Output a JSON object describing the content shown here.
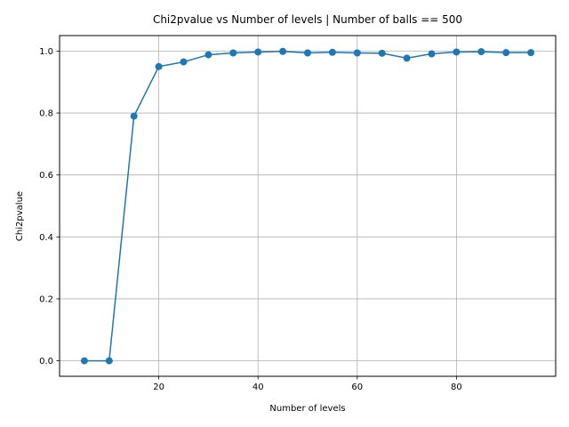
{
  "chart_data": {
    "type": "line",
    "title": "Chi2pvalue vs Number of levels | Number of balls == 500",
    "xlabel": "Number of levels",
    "ylabel": "Chi2pvalue",
    "xlim": [
      0,
      100
    ],
    "ylim": [
      -0.05,
      1.05
    ],
    "xticks": [
      20,
      40,
      60,
      80
    ],
    "xtick_labels": [
      "20",
      "40",
      "60",
      "80"
    ],
    "yticks": [
      0.0,
      0.2,
      0.4,
      0.6,
      0.8,
      1.0
    ],
    "ytick_labels": [
      "0.0",
      "0.2",
      "0.4",
      "0.6",
      "0.8",
      "1.0"
    ],
    "grid": true,
    "marker": "circle",
    "series": [
      {
        "color": "#1f77b4",
        "x": [
          5,
          10,
          15,
          20,
          25,
          30,
          35,
          40,
          45,
          50,
          55,
          60,
          65,
          70,
          75,
          80,
          85,
          90,
          95
        ],
        "y": [
          0.0,
          0.0,
          0.79,
          0.95,
          0.965,
          0.988,
          0.994,
          0.997,
          0.999,
          0.994,
          0.996,
          0.994,
          0.993,
          0.977,
          0.991,
          0.997,
          0.998,
          0.995,
          0.995
        ]
      }
    ]
  }
}
